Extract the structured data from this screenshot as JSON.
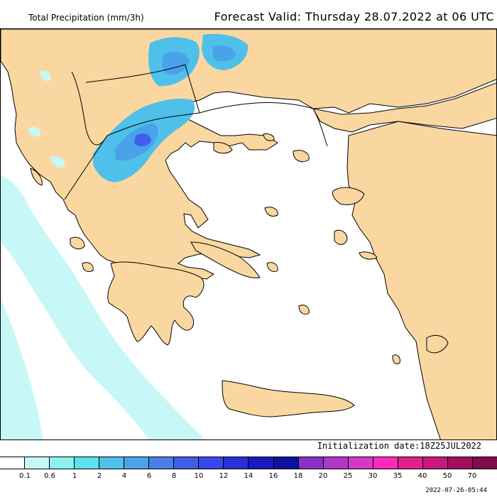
{
  "header": {
    "product_title": "Total Precipitation (mm/3h)",
    "forecast_valid": "Forecast Valid:  Thursday 28.07.2022 at 06 UTC"
  },
  "map": {
    "colors": {
      "land": "#fad7a0",
      "sea": "#ffffff",
      "coast": "#000000",
      "border": "#000000"
    }
  },
  "initialization": "Initialization date:18Z25JUL2022",
  "legend": {
    "colors": [
      "#ffffff",
      "#c8f7f7",
      "#8cf0f0",
      "#5ee0ee",
      "#4fc0ea",
      "#4aa2ea",
      "#4a7fe8",
      "#3f5fe8",
      "#3848e8",
      "#2a30d8",
      "#1a1ab8",
      "#1010a0",
      "#8a30c8",
      "#b038c8",
      "#d838c8",
      "#ff2ab8",
      "#e0208a",
      "#c81880",
      "#a0105f",
      "#800c4a"
    ],
    "ticks": [
      "0.1",
      "0.6",
      "1",
      "2",
      "4",
      "6",
      "8",
      "10",
      "12",
      "14",
      "16",
      "18",
      "20",
      "25",
      "30",
      "35",
      "40",
      "50",
      "70"
    ]
  },
  "timestamp": "2022-07-26-05:44"
}
